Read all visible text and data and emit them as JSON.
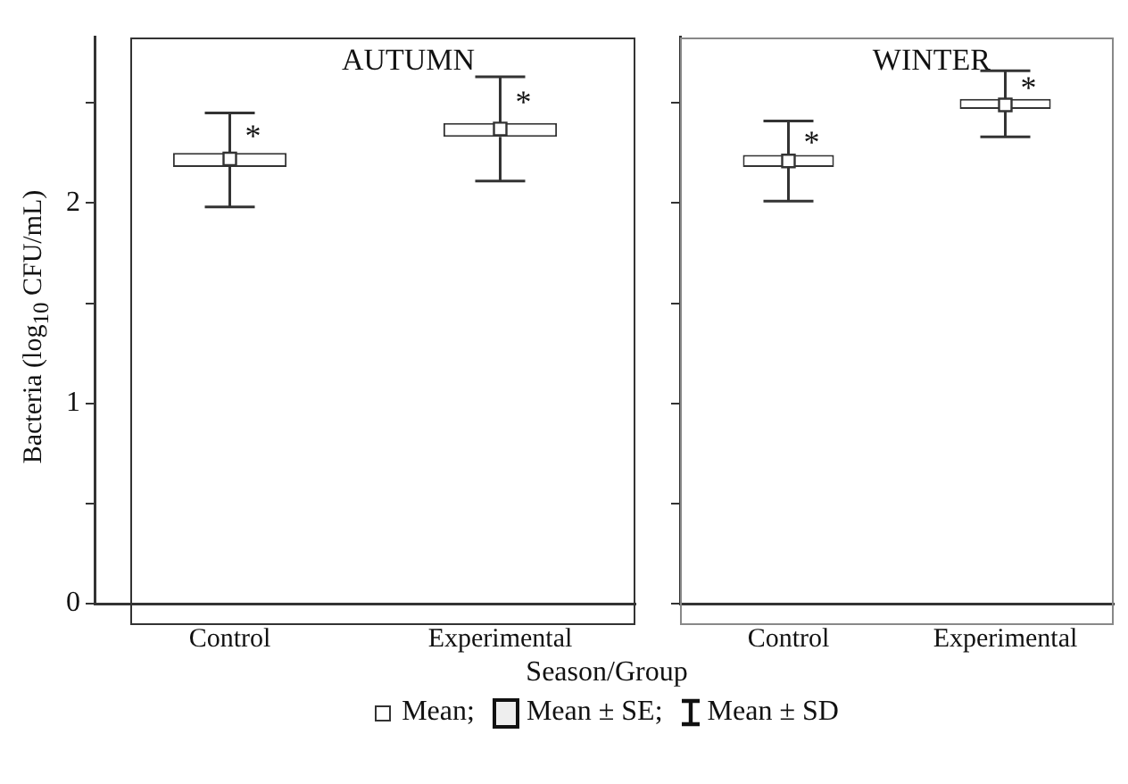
{
  "chart_data": [
    {
      "type": "box",
      "title": "AUTUMN",
      "xlabel": "Season/Group",
      "ylabel": "Bacteria (log$_{10}$ CFU/mL)",
      "categories": [
        "Control",
        "Experimental"
      ],
      "boxes": [
        {
          "low": 1.98,
          "q1": 2.18,
          "mean": 2.22,
          "q3": 2.25,
          "high": 2.45
        },
        {
          "low": 2.11,
          "q1": 2.33,
          "mean": 2.37,
          "q3": 2.4,
          "high": 2.63
        }
      ],
      "ylim": [
        0,
        2.83
      ],
      "yticks": [
        0,
        {
          "value": 0.5,
          "label": null
        },
        1,
        {
          "value": 1.5,
          "label": null
        },
        2,
        {
          "value": 2.5,
          "label": null
        }
      ],
      "annotations": [
        {
          "text": "*",
          "x": "Control",
          "y": 2.36
        },
        {
          "text": "*",
          "x": "Experimental",
          "y": 2.53
        },
        "Mean;",
        "Mean ± SE;",
        "Mean ± SD"
      ]
    },
    {
      "type": "box",
      "title": "WINTER",
      "categories": [
        "Control",
        "Experimental"
      ],
      "boxes": [
        {
          "low": 2.01,
          "q1": 2.18,
          "mean": 2.21,
          "q3": 2.24,
          "high": 2.41
        },
        {
          "low": 2.33,
          "q1": 2.47,
          "mean": 2.49,
          "q3": 2.52,
          "high": 2.66
        }
      ],
      "ylim": [
        0,
        2.83
      ],
      "yticks": [
        0,
        {
          "value": 0.5,
          "label": null
        },
        1,
        {
          "value": 1.5,
          "label": null
        },
        2,
        {
          "value": 2.5,
          "label": null
        }
      ],
      "tick_labels": "x",
      "annotations": [
        {
          "text": "*",
          "x": "Control",
          "y": 2.33
        },
        {
          "text": "*",
          "x": "Experimental",
          "y": 2.6
        }
      ]
    }
  ]
}
